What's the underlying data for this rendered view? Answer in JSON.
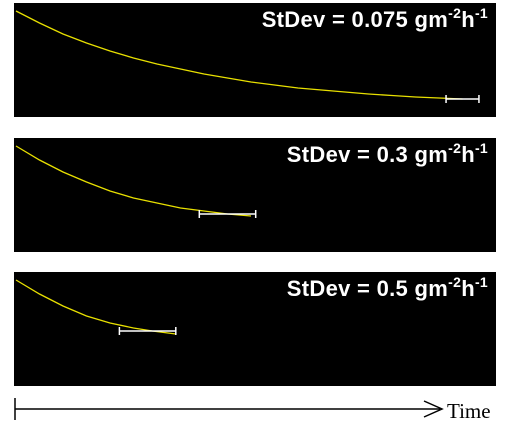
{
  "chart_data": [
    {
      "type": "line",
      "label": {
        "text": "StDev = 0.075 g",
        "unit_g_exp": "m",
        "sup1": "-2",
        "unit_h": "h",
        "sup2": "-1"
      },
      "stdev": 0.075,
      "series_color": "#e8e000",
      "curve": [
        [
          0,
          0.98
        ],
        [
          0.05,
          0.86
        ],
        [
          0.1,
          0.75
        ],
        [
          0.15,
          0.66
        ],
        [
          0.2,
          0.58
        ],
        [
          0.25,
          0.51
        ],
        [
          0.3,
          0.45
        ],
        [
          0.35,
          0.4
        ],
        [
          0.4,
          0.35
        ],
        [
          0.45,
          0.31
        ],
        [
          0.5,
          0.27
        ],
        [
          0.55,
          0.24
        ],
        [
          0.6,
          0.21
        ],
        [
          0.65,
          0.19
        ],
        [
          0.7,
          0.17
        ],
        [
          0.75,
          0.15
        ],
        [
          0.8,
          0.135
        ],
        [
          0.85,
          0.12
        ],
        [
          0.9,
          0.11
        ],
        [
          0.95,
          0.1
        ]
      ],
      "error_bar": {
        "x": 0.95,
        "y": 0.1,
        "half_width": 0.035
      }
    },
    {
      "type": "line",
      "label": {
        "text": "StDev = 0.3 g",
        "unit_g_exp": "m",
        "sup1": "-2",
        "unit_h": "h",
        "sup2": "-1"
      },
      "stdev": 0.3,
      "series_color": "#e8e000",
      "curve": [
        [
          0,
          0.98
        ],
        [
          0.05,
          0.84
        ],
        [
          0.1,
          0.72
        ],
        [
          0.15,
          0.62
        ],
        [
          0.2,
          0.53
        ],
        [
          0.25,
          0.46
        ],
        [
          0.3,
          0.41
        ],
        [
          0.35,
          0.36
        ],
        [
          0.4,
          0.33
        ],
        [
          0.45,
          0.3
        ],
        [
          0.5,
          0.28
        ]
      ],
      "error_bar": {
        "x": 0.45,
        "y": 0.3,
        "half_width": 0.06
      }
    },
    {
      "type": "line",
      "label": {
        "text": "StDev = 0.5 g",
        "unit_g_exp": "m",
        "sup1": "-2",
        "unit_h": "h",
        "sup2": "-1"
      },
      "stdev": 0.5,
      "series_color": "#e8e000",
      "curve": [
        [
          0,
          0.98
        ],
        [
          0.05,
          0.84
        ],
        [
          0.1,
          0.72
        ],
        [
          0.15,
          0.62
        ],
        [
          0.2,
          0.55
        ],
        [
          0.25,
          0.5
        ],
        [
          0.29,
          0.47
        ],
        [
          0.34,
          0.44
        ]
      ],
      "error_bar": {
        "x": 0.28,
        "y": 0.47,
        "half_width": 0.06
      }
    }
  ],
  "axis": {
    "label": "Time"
  }
}
